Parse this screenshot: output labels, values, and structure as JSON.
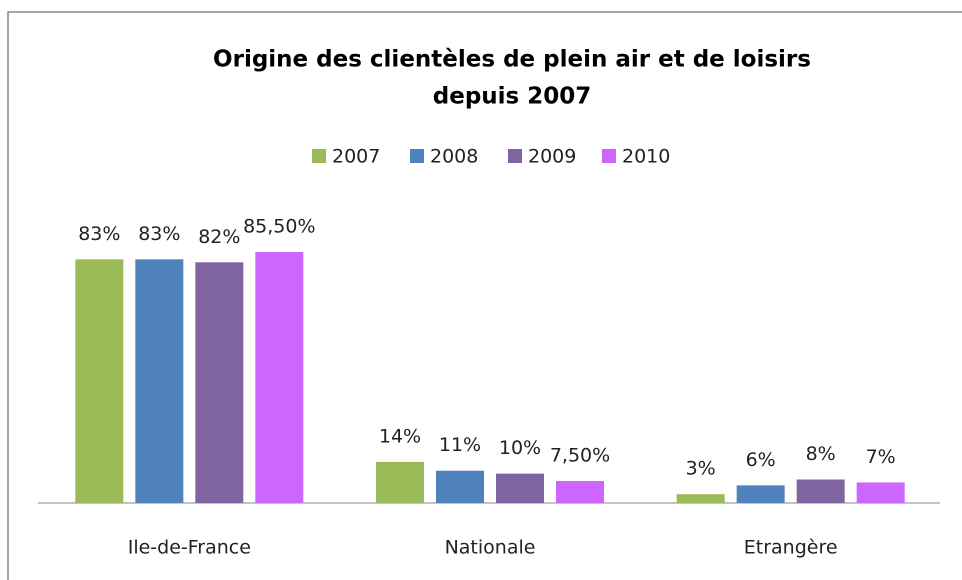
{
  "chart_data": {
    "type": "bar",
    "title": [
      "Origine des clientèles de plein air et de loisirs",
      "depuis 2007"
    ],
    "categories": [
      "Ile-de-France",
      "Nationale",
      "Etrangère"
    ],
    "series": [
      {
        "name": "2007",
        "color": "#9bbb59",
        "values": [
          83,
          14,
          3
        ],
        "value_labels": [
          "83%",
          "14%",
          "3%"
        ]
      },
      {
        "name": "2008",
        "color": "#4f81bd",
        "values": [
          83,
          11,
          6
        ],
        "value_labels": [
          "83%",
          "11%",
          "6%"
        ]
      },
      {
        "name": "2009",
        "color": "#8064a2",
        "values": [
          82,
          10,
          8
        ],
        "value_labels": [
          "82%",
          "10%",
          "8%"
        ]
      },
      {
        "name": "2010",
        "color": "#cc66ff",
        "values": [
          85.5,
          7.5,
          7
        ],
        "value_labels": [
          "85,50%",
          "7,50%",
          "7%"
        ]
      }
    ],
    "legend": "top"
  }
}
